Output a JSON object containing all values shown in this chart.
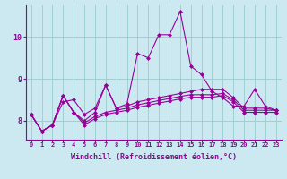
{
  "xlabel": "Windchill (Refroidissement éolien,°C)",
  "bg_color": "#cce8f0",
  "line_color": "#990099",
  "grid_color": "#99cccc",
  "axis_bg": "#cce8f0",
  "xlim": [
    -0.5,
    23.5
  ],
  "ylim": [
    7.55,
    10.75
  ],
  "yticks": [
    8,
    9,
    10
  ],
  "xticks": [
    0,
    1,
    2,
    3,
    4,
    5,
    6,
    7,
    8,
    9,
    10,
    11,
    12,
    13,
    14,
    15,
    16,
    17,
    18,
    19,
    20,
    21,
    22,
    23
  ],
  "series": [
    [
      8.15,
      7.75,
      7.9,
      8.45,
      8.5,
      8.15,
      8.3,
      8.85,
      8.3,
      8.4,
      9.6,
      9.5,
      10.05,
      10.05,
      10.6,
      9.3,
      9.1,
      8.7,
      8.55,
      8.35,
      8.35,
      8.75,
      8.35,
      8.25
    ],
    [
      8.15,
      7.75,
      7.9,
      8.6,
      8.2,
      8.0,
      8.2,
      8.85,
      8.3,
      8.35,
      8.45,
      8.5,
      8.55,
      8.6,
      8.65,
      8.7,
      8.75,
      8.75,
      8.75,
      8.55,
      8.3,
      8.3,
      8.3,
      8.25
    ],
    [
      8.15,
      7.75,
      7.9,
      8.6,
      8.2,
      7.95,
      8.1,
      8.2,
      8.25,
      8.3,
      8.38,
      8.43,
      8.48,
      8.53,
      8.58,
      8.62,
      8.62,
      8.62,
      8.65,
      8.5,
      8.25,
      8.25,
      8.25,
      8.25
    ],
    [
      8.15,
      7.75,
      7.9,
      8.6,
      8.2,
      7.9,
      8.05,
      8.15,
      8.2,
      8.25,
      8.32,
      8.37,
      8.42,
      8.47,
      8.52,
      8.56,
      8.56,
      8.56,
      8.6,
      8.45,
      8.2,
      8.2,
      8.2,
      8.2
    ]
  ],
  "marker": "D",
  "marker_size": 2,
  "line_width": 0.8,
  "tick_fontsize": 5,
  "xlabel_fontsize": 6,
  "ytick_fontsize": 6
}
